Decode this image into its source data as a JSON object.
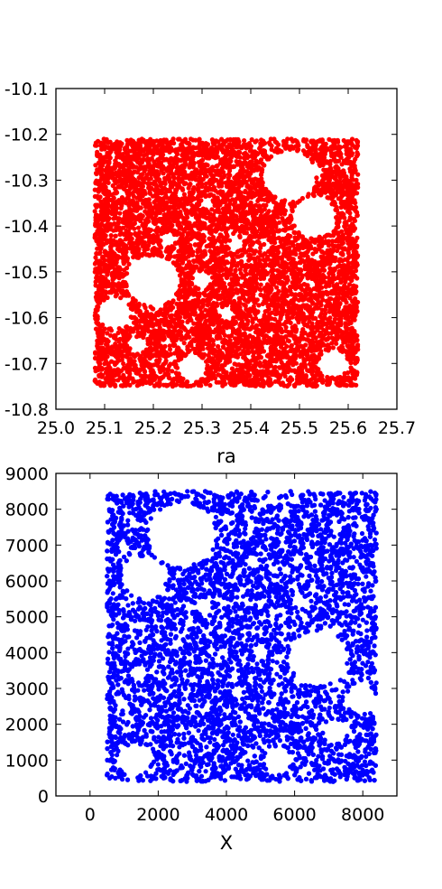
{
  "chart_data": [
    {
      "type": "scatter",
      "title": "",
      "xlabel": "ra",
      "ylabel": "",
      "xlim": [
        25.0,
        25.7
      ],
      "ylim": [
        -10.8,
        -10.1
      ],
      "xticks": [
        "25.0",
        "25.1",
        "25.2",
        "25.3",
        "25.4",
        "25.5",
        "25.6",
        "25.7"
      ],
      "yticks": [
        "-10.1",
        "-10.2",
        "-10.3",
        "-10.4",
        "-10.5",
        "-10.6",
        "-10.7",
        "-10.8"
      ],
      "grid": false,
      "marker_color": "#ff0000",
      "extent": {
        "x": [
          25.08,
          25.62
        ],
        "y": [
          -10.75,
          -10.21
        ]
      },
      "holes": [
        {
          "x": 25.48,
          "y": -10.29,
          "r": 0.055
        },
        {
          "x": 25.53,
          "y": -10.38,
          "r": 0.045
        },
        {
          "x": 25.2,
          "y": -10.52,
          "r": 0.055
        },
        {
          "x": 25.12,
          "y": -10.59,
          "r": 0.035
        },
        {
          "x": 25.28,
          "y": -10.71,
          "r": 0.03
        },
        {
          "x": 25.57,
          "y": -10.7,
          "r": 0.03
        },
        {
          "x": 25.37,
          "y": -10.44,
          "r": 0.015
        },
        {
          "x": 25.23,
          "y": -10.43,
          "r": 0.015
        },
        {
          "x": 25.3,
          "y": -10.52,
          "r": 0.018
        },
        {
          "x": 25.35,
          "y": -10.59,
          "r": 0.015
        },
        {
          "x": 25.17,
          "y": -10.66,
          "r": 0.018
        },
        {
          "x": 25.31,
          "y": -10.35,
          "r": 0.013
        }
      ]
    },
    {
      "type": "scatter",
      "title": "",
      "xlabel": "X",
      "ylabel": "",
      "xlim": [
        -1000,
        9000
      ],
      "ylim": [
        0,
        9000
      ],
      "xticks": [
        "0",
        "2000",
        "4000",
        "6000",
        "8000"
      ],
      "yticks": [
        "0",
        "1000",
        "2000",
        "3000",
        "4000",
        "5000",
        "6000",
        "7000",
        "8000",
        "9000"
      ],
      "grid": false,
      "marker_color": "#0000ff",
      "extent": {
        "x": [
          500,
          8400
        ],
        "y": [
          400,
          8500
        ]
      },
      "holes": [
        {
          "x": 2700,
          "y": 7300,
          "r": 1000
        },
        {
          "x": 1600,
          "y": 6100,
          "r": 650
        },
        {
          "x": 6700,
          "y": 3850,
          "r": 850
        },
        {
          "x": 7950,
          "y": 2700,
          "r": 450
        },
        {
          "x": 7200,
          "y": 1800,
          "r": 350
        },
        {
          "x": 1300,
          "y": 1000,
          "r": 500
        },
        {
          "x": 5500,
          "y": 1000,
          "r": 420
        },
        {
          "x": 3300,
          "y": 5300,
          "r": 230
        },
        {
          "x": 5000,
          "y": 4000,
          "r": 230
        },
        {
          "x": 4300,
          "y": 2900,
          "r": 200
        },
        {
          "x": 6200,
          "y": 5400,
          "r": 200
        },
        {
          "x": 4800,
          "y": 6500,
          "r": 200
        },
        {
          "x": 1400,
          "y": 3400,
          "r": 200
        },
        {
          "x": 1300,
          "y": 7600,
          "r": 160
        },
        {
          "x": 2500,
          "y": 4200,
          "r": 150
        }
      ]
    }
  ]
}
